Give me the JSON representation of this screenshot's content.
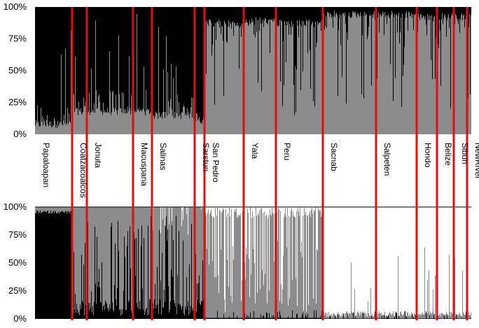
{
  "chart_data": [
    {
      "type": "bar",
      "stacked": true,
      "panel": "top",
      "ylim": [
        0,
        100
      ],
      "yticks": [
        "0%",
        "25%",
        "50%",
        "75%",
        "100%"
      ],
      "grid": false,
      "legend": "none",
      "colors": {
        "black": "#000000",
        "gray": "#8c8c8c"
      },
      "populations": [
        "Papaloapan",
        "Coatzacoalcos",
        "Jonuta",
        "Macuspana",
        "Salinas",
        "Sarstun",
        "San Pedro",
        "Yala",
        "Peru",
        "Sacnab",
        "Salpeten",
        "Hondo",
        "Belize",
        "Sibun",
        "NewRiver"
      ],
      "gray_fraction_typical_percent": [
        5,
        15,
        15,
        15,
        12,
        8,
        90,
        92,
        90,
        97,
        97,
        95,
        95,
        95,
        95
      ]
    },
    {
      "type": "bar",
      "stacked": true,
      "panel": "bottom",
      "ylim": [
        0,
        100
      ],
      "yticks": [
        "0%",
        "25%",
        "50%",
        "75%",
        "100%"
      ],
      "grid": false,
      "legend": "none",
      "colors": {
        "black": "#000000",
        "gray": "#8c8c8c",
        "white": "#ffffff"
      },
      "populations": [
        "Papaloapan",
        "Coatzacoalcos",
        "Jonuta",
        "Macuspana",
        "Salinas",
        "Sarstun",
        "San Pedro",
        "Yala",
        "Peru",
        "Sacnab",
        "Salpeten",
        "Hondo",
        "Belize",
        "Sibun",
        "NewRiver"
      ],
      "white_fraction_typical_percent": [
        0,
        0,
        0,
        0,
        3,
        5,
        40,
        45,
        40,
        97,
        97,
        96,
        95,
        93,
        95
      ]
    }
  ],
  "labels": {
    "populations": [
      "Papaloapan",
      "Coatzacoalcos",
      "Jonuta",
      "Macuspana",
      "Salinas",
      "Sarstun",
      "San Pedro",
      "Yala",
      "Peru",
      "Sacnab",
      "Salpeten",
      "Hondo",
      "Belize",
      "Sibun",
      "NewRiver"
    ],
    "yticks": [
      "0%",
      "25%",
      "50%",
      "75%",
      "100%"
    ]
  }
}
